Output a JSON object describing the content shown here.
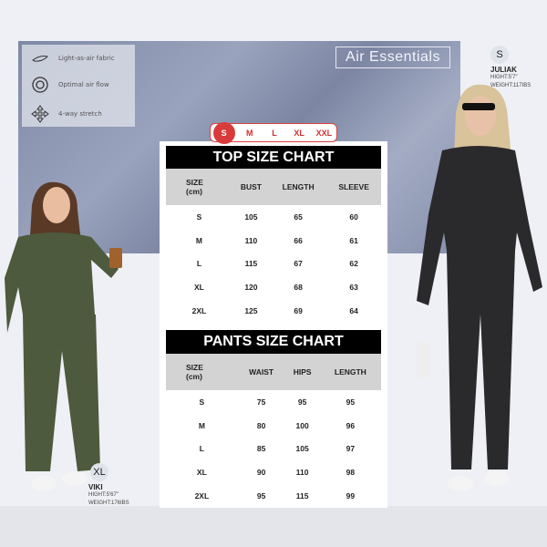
{
  "features": [
    {
      "icon": "feather-icon",
      "label": "Light-as-air fabric"
    },
    {
      "icon": "air-flow-icon",
      "label": "Optimal air flow"
    },
    {
      "icon": "stretch-arrows-icon",
      "label": "4-way stretch"
    }
  ],
  "brand": "Air Essentials",
  "size_selector": {
    "options": [
      "S",
      "M",
      "L",
      "XL",
      "XXL"
    ],
    "selected": "S"
  },
  "top_chart": {
    "title": "TOP SIZE CHART",
    "headers": [
      "SIZE\n(cm)",
      "BUST",
      "LENGTH",
      "SLEEVE"
    ],
    "rows": [
      [
        "S",
        "105",
        "65",
        "60"
      ],
      [
        "M",
        "110",
        "66",
        "61"
      ],
      [
        "L",
        "115",
        "67",
        "62"
      ],
      [
        "XL",
        "120",
        "68",
        "63"
      ],
      [
        "2XL",
        "125",
        "69",
        "64"
      ]
    ]
  },
  "pants_chart": {
    "title": "PANTS SIZE CHART",
    "headers": [
      "SIZE\n(cm)",
      "WAIST",
      "HIPS",
      "LENGTH"
    ],
    "rows": [
      [
        "S",
        "75",
        "95",
        "95"
      ],
      [
        "M",
        "80",
        "100",
        "96"
      ],
      [
        "L",
        "85",
        "105",
        "97"
      ],
      [
        "XL",
        "90",
        "110",
        "98"
      ],
      [
        "2XL",
        "95",
        "115",
        "99"
      ]
    ]
  },
  "models": [
    {
      "size": "S",
      "name": "JULIAK",
      "height": "HIGHT:5'7\"",
      "weight": "WEIGHT:117IBS",
      "outfit_color": "#2a2a2c"
    },
    {
      "size": "XL",
      "name": "VIKI",
      "height": "HIGHT:5'67\"",
      "weight": "WEIGHT:176IBS",
      "outfit_color": "#4d5a3d"
    }
  ],
  "colors": {
    "accent": "#d93b3b",
    "header": "#000000",
    "header_row": "#d3d3d3"
  }
}
